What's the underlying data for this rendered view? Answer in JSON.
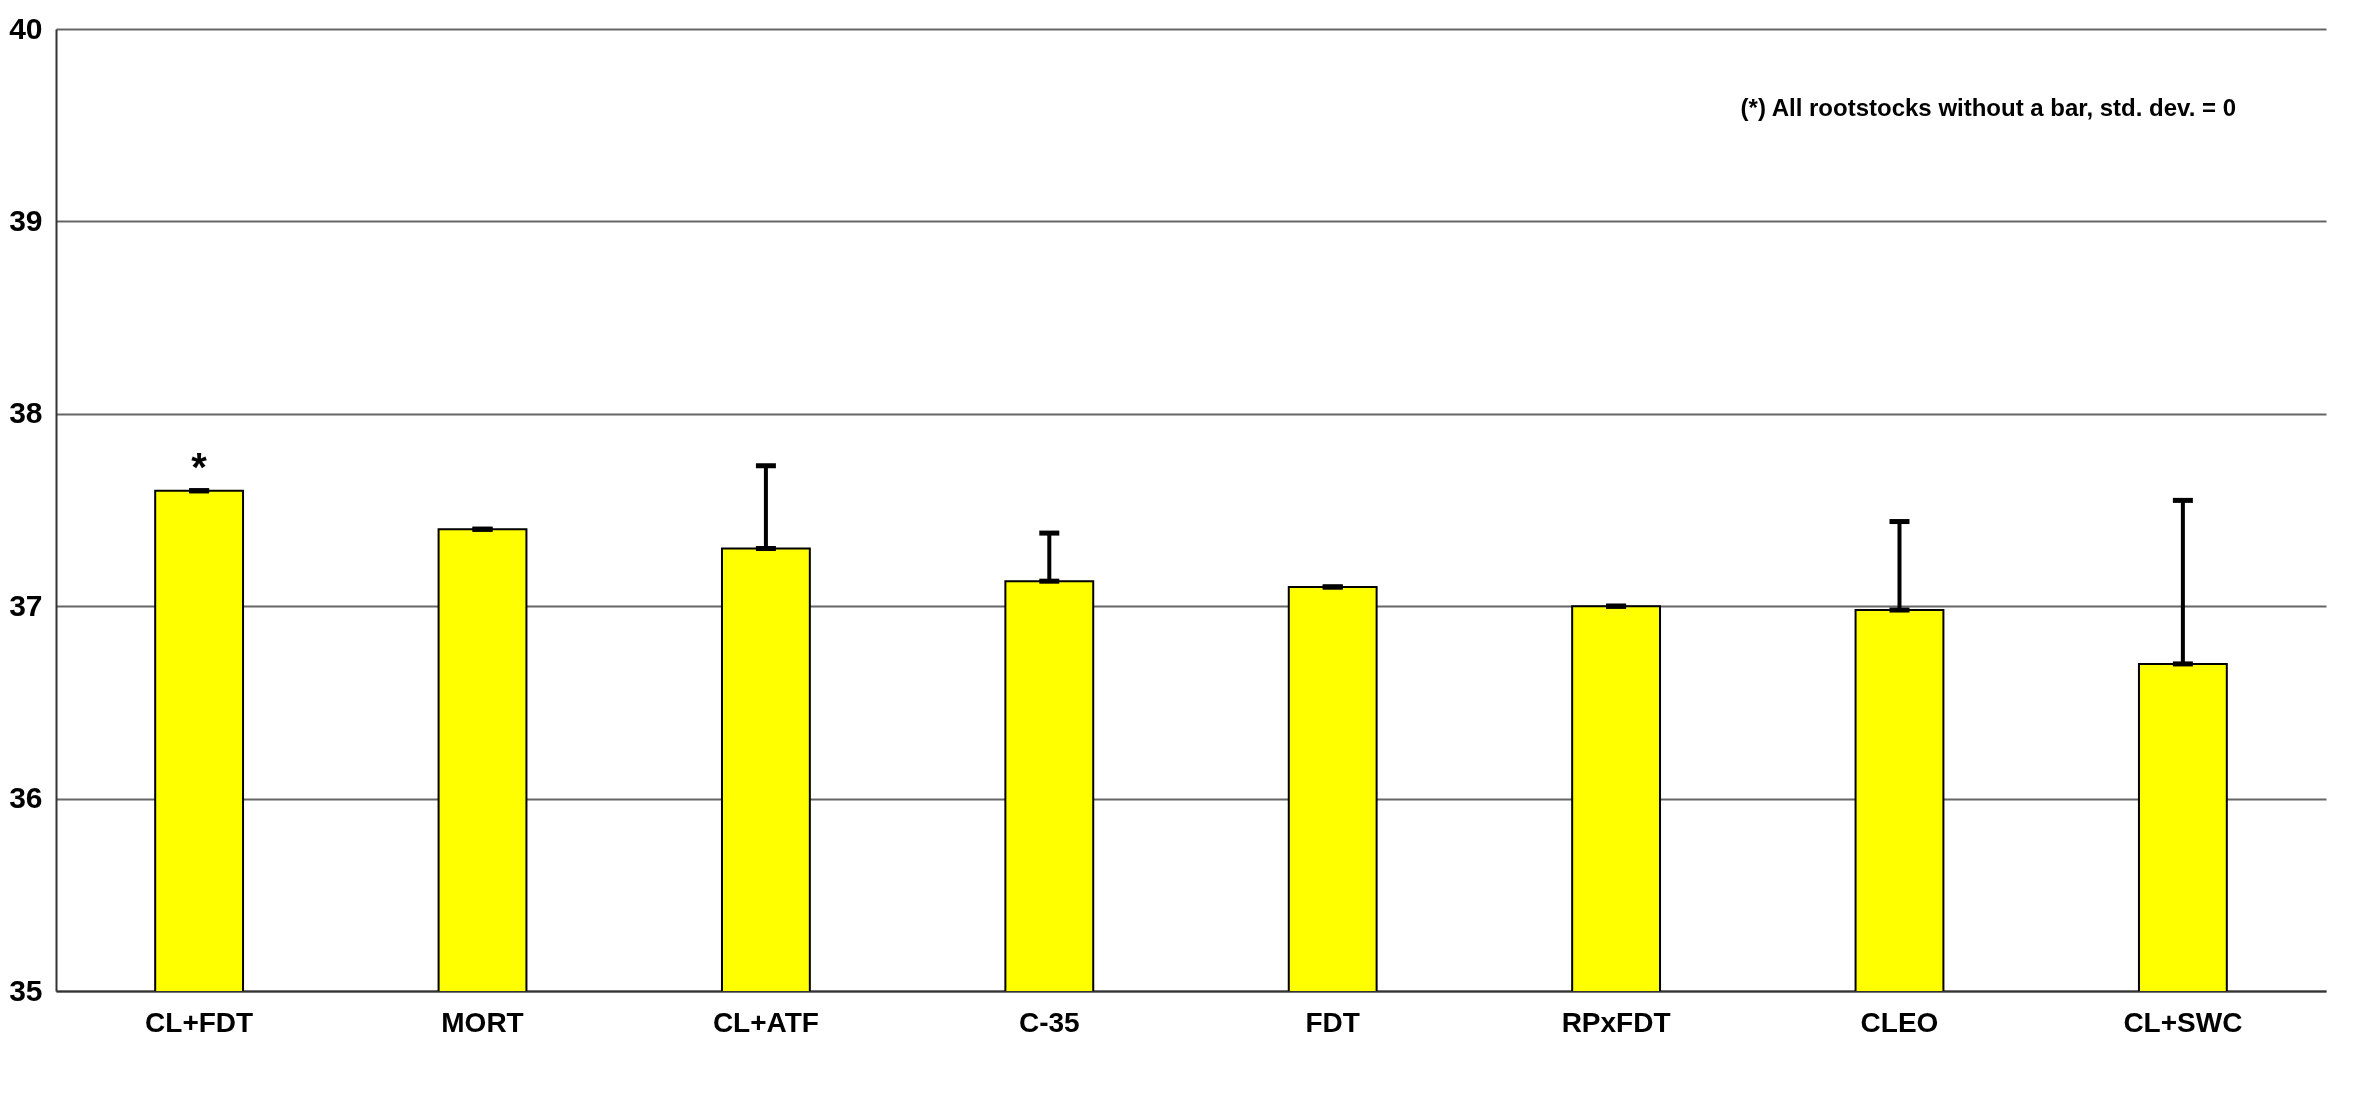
{
  "chart_data": {
    "type": "bar",
    "categories": [
      "CL+FDT",
      "MORT",
      "CL+ATF",
      "C-35",
      "FDT",
      "RPxFDT",
      "CLEO",
      "CL+SWC"
    ],
    "values": [
      37.6,
      37.4,
      37.3,
      37.13,
      37.1,
      37.0,
      36.98,
      36.7
    ],
    "color": "#ffff00",
    "errors": [
      0,
      0,
      [
        37.3,
        37.73
      ],
      [
        37.13,
        37.38
      ],
      0,
      0,
      [
        36.98,
        37.44
      ],
      [
        36.7,
        37.55
      ]
    ],
    "ylim": [
      35,
      40
    ],
    "yticks": [
      35,
      36,
      37,
      38,
      39,
      40
    ],
    "grid": "y",
    "annotations": [
      {
        "text": "*",
        "x": "CL+FDT",
        "y": 37.6
      },
      "(*) All rootstocks without a bar, std. dev. = 0"
    ]
  }
}
